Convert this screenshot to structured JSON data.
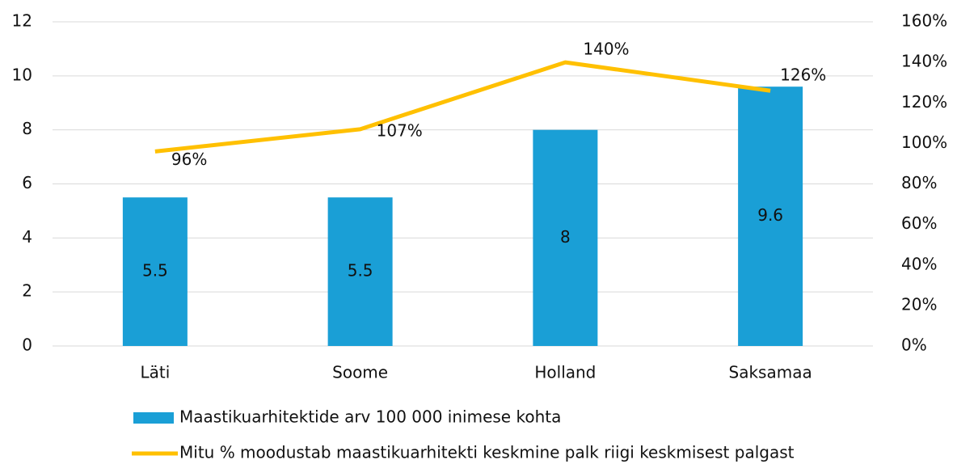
{
  "chart_data": {
    "type": "bar_line",
    "categories": [
      "Läti",
      "Soome",
      "Holland",
      "Saksamaa"
    ],
    "series": [
      {
        "name": "Maastikuarhitektide arv 100 000 inimese kohta",
        "type": "bar",
        "color": "#1a9fd6",
        "values": [
          5.5,
          5.5,
          8,
          9.6
        ]
      },
      {
        "name": "Mitu % moodustab maastikuarhitekti keskmine palk riigi keskmisest palgast",
        "type": "line",
        "axis": "y2",
        "color": "#ffc000",
        "values": [
          96,
          107,
          140,
          126
        ],
        "value_labels": [
          "96%",
          "107%",
          "140%",
          "126%"
        ]
      }
    ],
    "ylim": [
      0,
      12
    ],
    "yticks": [
      0,
      2,
      4,
      6,
      8,
      10,
      12
    ],
    "y2lim": [
      0,
      160
    ],
    "y2ticks": [
      {
        "value": 0,
        "label": "0%"
      },
      {
        "value": 20,
        "label": "20%"
      },
      {
        "value": 40,
        "label": "40%"
      },
      {
        "value": 60,
        "label": "60%"
      },
      {
        "value": 80,
        "label": "80%"
      },
      {
        "value": 100,
        "label": "100%"
      },
      {
        "value": 120,
        "label": "120%"
      },
      {
        "value": 140,
        "label": "140%"
      },
      {
        "value": 160,
        "label": "160%"
      }
    ],
    "grid": true,
    "legend": "bottom"
  }
}
